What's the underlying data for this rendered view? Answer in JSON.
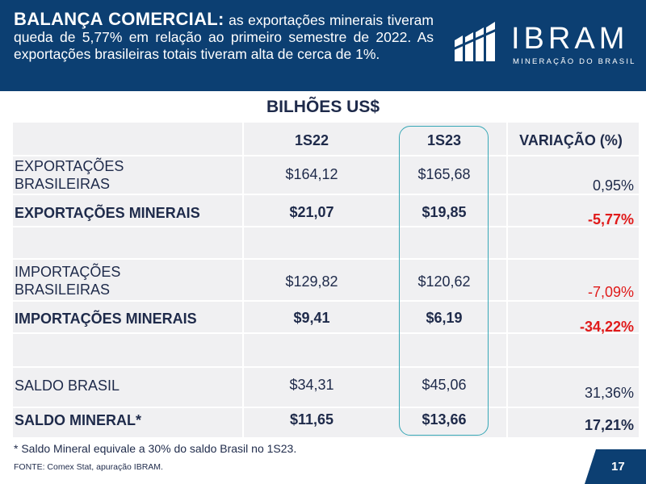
{
  "header": {
    "lead": "BALANÇA COMERCIAL:",
    "body": " as exportações minerais tiveram queda de 5,77% em relação ao primeiro semestre de 2022. As exportações brasileiras totais tiveram alta de cerca de 1%.",
    "background": "#0c3f72"
  },
  "logo": {
    "name": "IBRAM",
    "subtitle": "MINERAÇÃO DO BRASIL",
    "icon": "ibram-bars-logo"
  },
  "units": "BILHÕES US$",
  "table": {
    "columns": [
      "1S22",
      "1S23",
      "VARIAÇÃO (%)"
    ],
    "rows": [
      {
        "label_line1": "EXPORTAÇÕES",
        "label_line2": "BRASILEIRAS",
        "s22": "$164,12",
        "s23": "$165,68",
        "var": "0,95%"
      },
      {
        "label": "EXPORTAÇÕES MINERAIS",
        "s22": "$21,07",
        "s23": "$19,85",
        "var": "-5,77%"
      },
      {
        "label_line1": "IMPORTAÇÕES",
        "label_line2": "BRASILEIRAS",
        "s22": "$129,82",
        "s23": "$120,62",
        "var": "-7,09%"
      },
      {
        "label": "IMPORTAÇÕES MINERAIS",
        "s22": "$9,41",
        "s23": "$6,19",
        "var": "-34,22%"
      },
      {
        "label": "SALDO BRASIL",
        "s22": "$34,31",
        "s23": "$45,06",
        "var": "31,36%"
      },
      {
        "label": "SALDO MINERAL*",
        "s22": "$11,65",
        "s23": "$13,66",
        "var": "17,21%"
      }
    ],
    "highlight_color": "#37a7b6",
    "negative_color": "#e01a1a"
  },
  "footnote": "* Saldo Mineral equivale a 30% do saldo Brasil no 1S23.",
  "source": "FONTE: Comex Stat, apuração IBRAM.",
  "page_number": "17"
}
